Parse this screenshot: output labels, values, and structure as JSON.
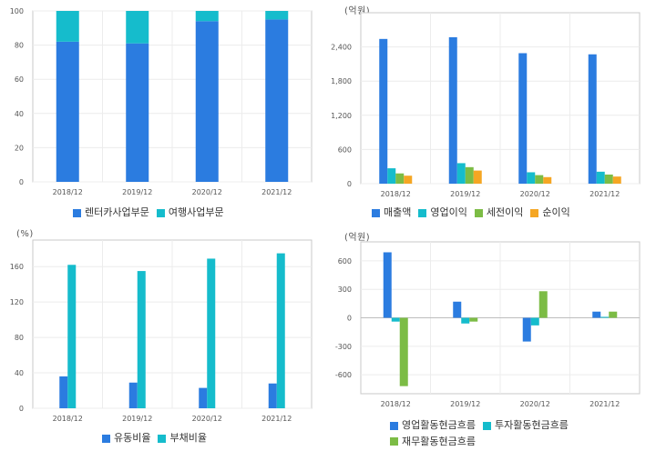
{
  "charts": {
    "revenue_mix": {
      "type": "bar",
      "stacked": true,
      "unit": "",
      "categories": [
        "2018/12",
        "2019/12",
        "2020/12",
        "2021/12"
      ],
      "ylim": [
        0,
        100
      ],
      "yticks": [
        0,
        20,
        40,
        60,
        80,
        100
      ],
      "ytick_labels": [
        "0",
        "20",
        "40",
        "60",
        "80",
        "100"
      ],
      "series": [
        {
          "name": "렌터카사업부문",
          "color": "#2b7ce0",
          "values": [
            82,
            81,
            94,
            95
          ]
        },
        {
          "name": "여행사업부문",
          "color": "#15bccc",
          "values": [
            18,
            19,
            6,
            5
          ]
        }
      ]
    },
    "income": {
      "type": "bar",
      "unit": "(억원)",
      "categories": [
        "2018/12",
        "2019/12",
        "2020/12",
        "2021/12"
      ],
      "ylim": [
        0,
        3000
      ],
      "yticks": [
        0,
        600,
        1200,
        1800,
        2400
      ],
      "ytick_labels": [
        "0",
        "600",
        "1,200",
        "1,800",
        "2,400"
      ],
      "series": [
        {
          "name": "매출액",
          "color": "#2b7ce0",
          "values": [
            2540,
            2570,
            2290,
            2270
          ]
        },
        {
          "name": "영업이익",
          "color": "#15bccc",
          "values": [
            270,
            360,
            200,
            210
          ]
        },
        {
          "name": "세전이익",
          "color": "#7cbc45",
          "values": [
            180,
            290,
            150,
            160
          ]
        },
        {
          "name": "순이익",
          "color": "#f5a623",
          "values": [
            140,
            230,
            115,
            125
          ]
        }
      ]
    },
    "ratios": {
      "type": "bar",
      "unit": "(%)",
      "categories": [
        "2018/12",
        "2019/12",
        "2020/12",
        "2021/12"
      ],
      "ylim": [
        0,
        190
      ],
      "yticks": [
        0,
        40,
        80,
        120,
        160
      ],
      "ytick_labels": [
        "0",
        "40",
        "80",
        "120",
        "160"
      ],
      "series": [
        {
          "name": "유동비율",
          "color": "#2b7ce0",
          "values": [
            36,
            29,
            23,
            28
          ]
        },
        {
          "name": "부채비율",
          "color": "#15bccc",
          "values": [
            162,
            155,
            169,
            175
          ]
        }
      ]
    },
    "cashflow": {
      "type": "bar",
      "unit": "(억원)",
      "categories": [
        "2018/12",
        "2019/12",
        "2020/12",
        "2021/12"
      ],
      "ylim": [
        -800,
        800
      ],
      "yticks": [
        -600,
        -300,
        0,
        300,
        600
      ],
      "ytick_labels": [
        "-600",
        "-300",
        "0",
        "300",
        "600"
      ],
      "series": [
        {
          "name": "영업활동현금흐름",
          "color": "#2b7ce0",
          "values": [
            690,
            170,
            -250,
            65
          ]
        },
        {
          "name": "투자활동현금흐름",
          "color": "#15bccc",
          "values": [
            -40,
            -60,
            -80,
            10
          ]
        },
        {
          "name": "재무활동현금흐름",
          "color": "#7cbc45",
          "values": [
            -720,
            -40,
            280,
            65
          ]
        }
      ]
    }
  }
}
